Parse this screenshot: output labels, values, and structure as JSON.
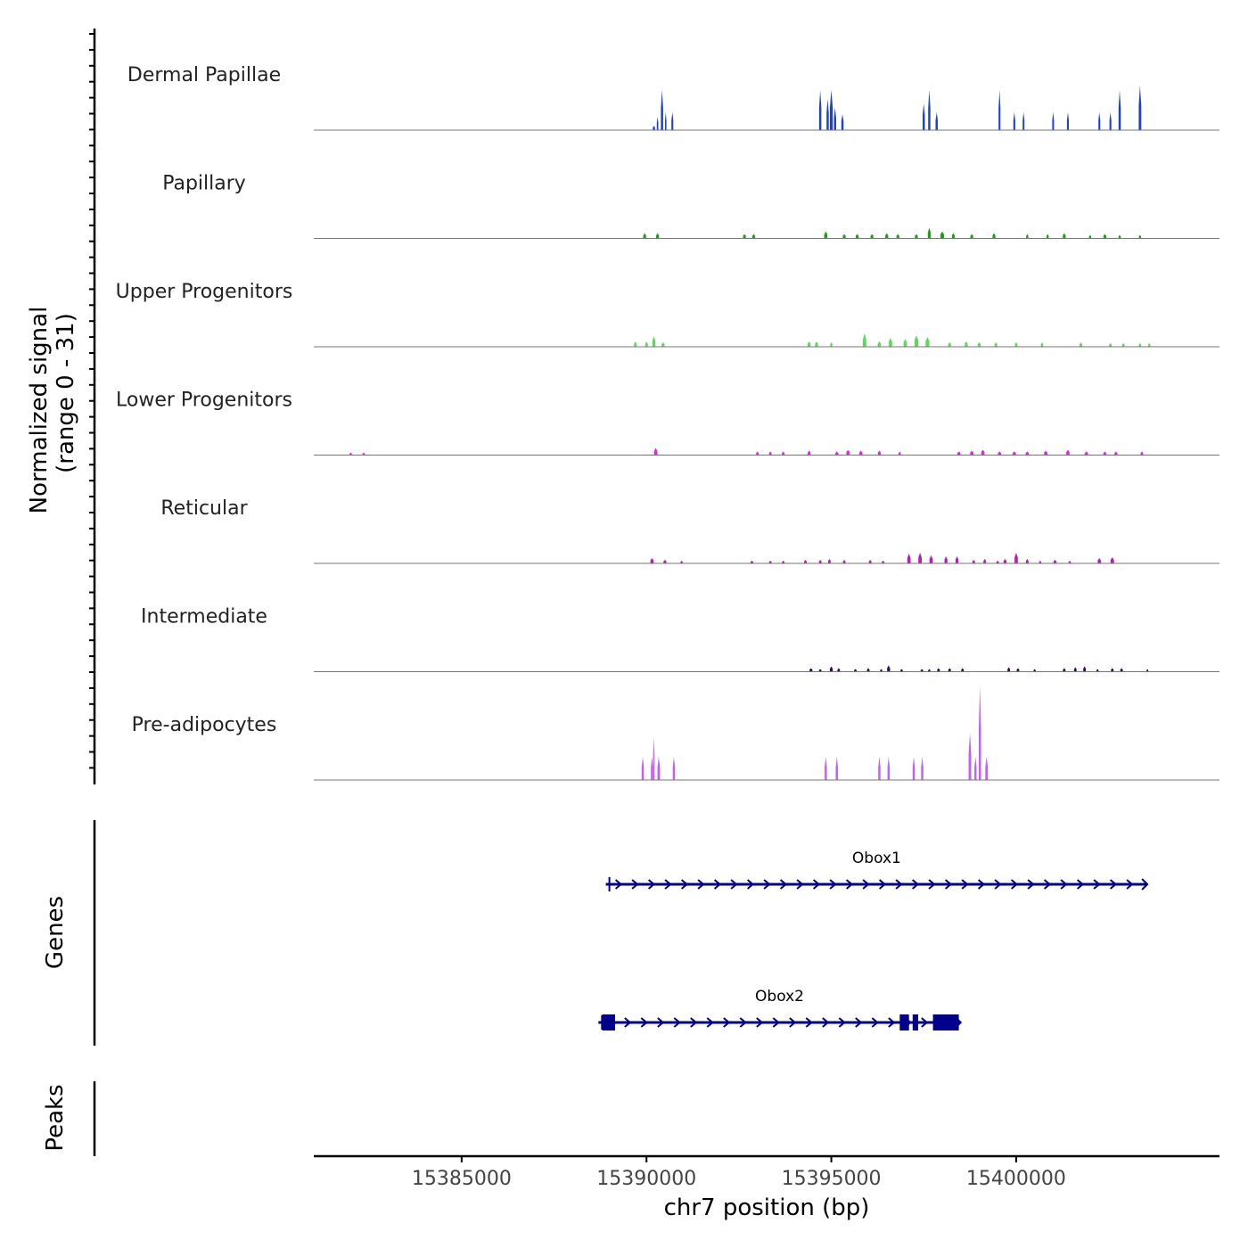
{
  "chart_data": {
    "type": "area",
    "chrom": "chr7",
    "xlim": [
      15381000,
      15405500
    ],
    "xlabel": "chr7 position (bp)",
    "x_ticks": [
      15385000,
      15390000,
      15395000,
      15400000
    ],
    "x_tick_labels": [
      "15385000",
      "15390000",
      "15395000",
      "15400000"
    ],
    "ylabel_line1": "Normalized signal",
    "ylabel_line2": "(range 0 - 31)",
    "y_range": [
      0,
      31
    ],
    "genes_label": "Genes",
    "peaks_label": "Peaks",
    "tracks": [
      {
        "name": "Dermal Papillae",
        "color": "#1d3fdb",
        "peaks": [
          [
            15390200,
            60,
            0.5
          ],
          [
            15390300,
            40,
            1.5
          ],
          [
            15390420,
            60,
            4.5
          ],
          [
            15390520,
            40,
            2.0
          ],
          [
            15390700,
            50,
            2.0
          ],
          [
            15394700,
            60,
            4.5
          ],
          [
            15394900,
            60,
            3.5
          ],
          [
            15395000,
            80,
            4.5
          ],
          [
            15395100,
            60,
            2.5
          ],
          [
            15395300,
            60,
            1.8
          ],
          [
            15397500,
            60,
            3.0
          ],
          [
            15397650,
            60,
            4.5
          ],
          [
            15397850,
            60,
            2.0
          ],
          [
            15399550,
            50,
            4.5
          ],
          [
            15399950,
            50,
            2.0
          ],
          [
            15400200,
            50,
            2.0
          ],
          [
            15401000,
            50,
            2.0
          ],
          [
            15401400,
            50,
            2.0
          ],
          [
            15402250,
            50,
            2.0
          ],
          [
            15402550,
            50,
            2.0
          ],
          [
            15402800,
            60,
            4.5
          ],
          [
            15403350,
            70,
            5.0
          ]
        ]
      },
      {
        "name": "Papillary",
        "color": "#1ca312",
        "peaks": [
          [
            15389950,
            80,
            0.6
          ],
          [
            15390300,
            80,
            0.6
          ],
          [
            15392650,
            80,
            0.5
          ],
          [
            15392900,
            80,
            0.5
          ],
          [
            15394850,
            90,
            0.8
          ],
          [
            15395350,
            80,
            0.5
          ],
          [
            15395700,
            80,
            0.5
          ],
          [
            15396100,
            80,
            0.5
          ],
          [
            15396500,
            80,
            0.6
          ],
          [
            15396800,
            80,
            0.5
          ],
          [
            15397300,
            80,
            0.5
          ],
          [
            15397650,
            80,
            1.2
          ],
          [
            15398000,
            100,
            0.8
          ],
          [
            15398300,
            80,
            0.6
          ],
          [
            15398800,
            80,
            0.5
          ],
          [
            15399400,
            80,
            0.6
          ],
          [
            15400300,
            60,
            0.5
          ],
          [
            15400850,
            60,
            0.5
          ],
          [
            15401300,
            80,
            0.6
          ],
          [
            15402000,
            60,
            0.4
          ],
          [
            15402400,
            80,
            0.5
          ],
          [
            15402800,
            60,
            0.4
          ],
          [
            15403350,
            60,
            0.4
          ]
        ]
      },
      {
        "name": "Upper Progenitors",
        "color": "#5adb58",
        "peaks": [
          [
            15389700,
            70,
            0.6
          ],
          [
            15390000,
            70,
            0.6
          ],
          [
            15390200,
            80,
            1.2
          ],
          [
            15390450,
            80,
            0.5
          ],
          [
            15394400,
            80,
            0.6
          ],
          [
            15394600,
            80,
            0.6
          ],
          [
            15395000,
            60,
            0.5
          ],
          [
            15395900,
            90,
            1.5
          ],
          [
            15396300,
            90,
            0.6
          ],
          [
            15396600,
            90,
            1.0
          ],
          [
            15397000,
            90,
            0.9
          ],
          [
            15397300,
            100,
            1.3
          ],
          [
            15397600,
            100,
            1.1
          ],
          [
            15398200,
            80,
            0.5
          ],
          [
            15398650,
            80,
            0.6
          ],
          [
            15399000,
            80,
            0.5
          ],
          [
            15399450,
            70,
            0.5
          ],
          [
            15400000,
            70,
            0.5
          ],
          [
            15400700,
            60,
            0.5
          ],
          [
            15401750,
            70,
            0.5
          ],
          [
            15402550,
            70,
            0.4
          ],
          [
            15402900,
            70,
            0.4
          ],
          [
            15403350,
            60,
            0.4
          ],
          [
            15403600,
            60,
            0.4
          ]
        ]
      },
      {
        "name": "Lower Progenitors",
        "color": "#e626e6",
        "peaks": [
          [
            15382000,
            60,
            0.3
          ],
          [
            15382350,
            60,
            0.3
          ],
          [
            15390250,
            90,
            0.8
          ],
          [
            15393000,
            70,
            0.4
          ],
          [
            15393350,
            70,
            0.4
          ],
          [
            15393700,
            70,
            0.4
          ],
          [
            15394400,
            80,
            0.5
          ],
          [
            15395150,
            80,
            0.4
          ],
          [
            15395450,
            90,
            0.6
          ],
          [
            15395800,
            90,
            0.5
          ],
          [
            15396300,
            80,
            0.5
          ],
          [
            15396850,
            60,
            0.4
          ],
          [
            15398450,
            90,
            0.4
          ],
          [
            15398800,
            90,
            0.5
          ],
          [
            15399100,
            90,
            0.6
          ],
          [
            15399550,
            90,
            0.4
          ],
          [
            15399950,
            90,
            0.4
          ],
          [
            15400300,
            90,
            0.4
          ],
          [
            15400800,
            90,
            0.5
          ],
          [
            15401400,
            90,
            0.6
          ],
          [
            15401900,
            90,
            0.4
          ],
          [
            15402400,
            80,
            0.4
          ],
          [
            15402700,
            80,
            0.4
          ],
          [
            15403400,
            70,
            0.4
          ]
        ]
      },
      {
        "name": "Reticular",
        "color": "#b41fb4",
        "peaks": [
          [
            15390150,
            90,
            0.6
          ],
          [
            15390500,
            80,
            0.4
          ],
          [
            15390950,
            60,
            0.3
          ],
          [
            15392850,
            80,
            0.3
          ],
          [
            15393350,
            70,
            0.3
          ],
          [
            15393700,
            70,
            0.3
          ],
          [
            15394300,
            70,
            0.4
          ],
          [
            15394700,
            70,
            0.4
          ],
          [
            15394950,
            70,
            0.5
          ],
          [
            15395350,
            70,
            0.4
          ],
          [
            15396050,
            70,
            0.4
          ],
          [
            15396400,
            70,
            0.3
          ],
          [
            15397100,
            90,
            1.1
          ],
          [
            15397400,
            90,
            1.2
          ],
          [
            15397700,
            90,
            0.9
          ],
          [
            15398100,
            80,
            0.8
          ],
          [
            15398400,
            80,
            0.8
          ],
          [
            15398850,
            70,
            0.4
          ],
          [
            15399150,
            70,
            0.5
          ],
          [
            15399500,
            70,
            0.3
          ],
          [
            15399700,
            80,
            0.5
          ],
          [
            15400000,
            90,
            1.2
          ],
          [
            15400300,
            70,
            0.5
          ],
          [
            15400650,
            60,
            0.3
          ],
          [
            15401050,
            80,
            0.4
          ],
          [
            15401450,
            60,
            0.3
          ],
          [
            15402250,
            90,
            0.6
          ],
          [
            15402600,
            90,
            0.7
          ]
        ]
      },
      {
        "name": "Intermediate",
        "color": "#3a0a52",
        "peaks": [
          [
            15394450,
            80,
            0.4
          ],
          [
            15394700,
            70,
            0.3
          ],
          [
            15395000,
            80,
            0.6
          ],
          [
            15395200,
            70,
            0.4
          ],
          [
            15395650,
            70,
            0.3
          ],
          [
            15396000,
            70,
            0.4
          ],
          [
            15396350,
            60,
            0.3
          ],
          [
            15396550,
            80,
            0.7
          ],
          [
            15396900,
            70,
            0.3
          ],
          [
            15397450,
            70,
            0.3
          ],
          [
            15397650,
            60,
            0.3
          ],
          [
            15397900,
            70,
            0.4
          ],
          [
            15398200,
            70,
            0.4
          ],
          [
            15398550,
            70,
            0.4
          ],
          [
            15399800,
            70,
            0.5
          ],
          [
            15400050,
            70,
            0.4
          ],
          [
            15400500,
            60,
            0.3
          ],
          [
            15401300,
            70,
            0.4
          ],
          [
            15401600,
            70,
            0.5
          ],
          [
            15401850,
            70,
            0.6
          ],
          [
            15402200,
            60,
            0.3
          ],
          [
            15402600,
            70,
            0.4
          ],
          [
            15402850,
            70,
            0.4
          ],
          [
            15403550,
            50,
            0.3
          ]
        ]
      },
      {
        "name": "Pre-adipocytes",
        "color": "#c160f1",
        "peaks": [
          [
            15389900,
            60,
            2.6
          ],
          [
            15390150,
            60,
            2.6
          ],
          [
            15390200,
            40,
            4.8
          ],
          [
            15390330,
            70,
            2.6
          ],
          [
            15390740,
            60,
            2.6
          ],
          [
            15394850,
            60,
            2.6
          ],
          [
            15395150,
            60,
            2.6
          ],
          [
            15396300,
            60,
            2.6
          ],
          [
            15396550,
            60,
            2.6
          ],
          [
            15397230,
            60,
            2.6
          ],
          [
            15397460,
            60,
            2.6
          ],
          [
            15398750,
            70,
            5.3
          ],
          [
            15398900,
            60,
            2.6
          ],
          [
            15399020,
            60,
            10.5
          ],
          [
            15399200,
            70,
            2.6
          ]
        ]
      }
    ],
    "genes": [
      {
        "name": "Obox1",
        "strand": "+",
        "start": 15388900,
        "end": 15403550,
        "row": 1,
        "exons": []
      },
      {
        "name": "Obox2",
        "strand": "+",
        "start": 15388700,
        "end": 15398500,
        "row": 2,
        "exons": [
          [
            15388800,
            15389150
          ],
          [
            15396850,
            15397100
          ],
          [
            15397200,
            15397350
          ],
          [
            15397750,
            15398450
          ]
        ]
      }
    ]
  }
}
